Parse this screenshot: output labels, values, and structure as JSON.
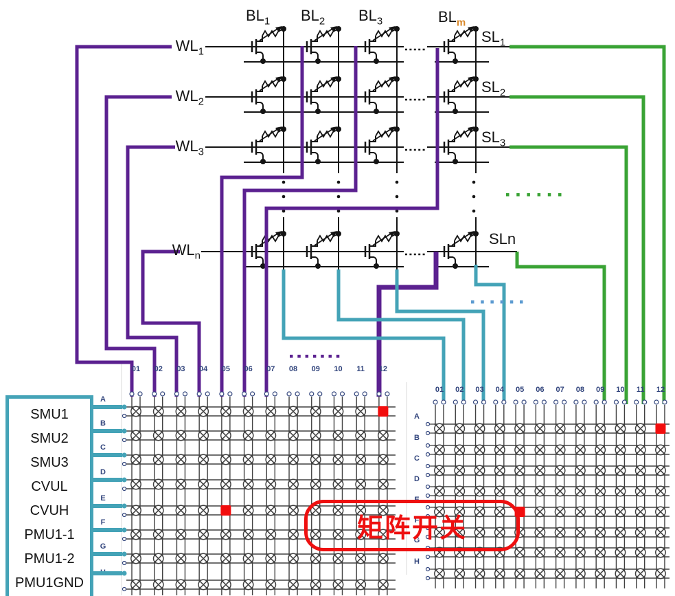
{
  "top_labels": {
    "bl": [
      {
        "pre": "BL",
        "sub": "1"
      },
      {
        "pre": "BL",
        "sub": "2"
      },
      {
        "pre": "BL",
        "sub": "3"
      },
      {
        "pre": "BL",
        "sub": "m"
      }
    ],
    "wl": [
      {
        "pre": "WL",
        "sub": "1"
      },
      {
        "pre": "WL",
        "sub": "2"
      },
      {
        "pre": "WL",
        "sub": "3"
      },
      {
        "pre": "WL",
        "sub": "n"
      }
    ],
    "sl": [
      {
        "pre": "SL",
        "sub": "1"
      },
      {
        "pre": "SL",
        "sub": "2"
      },
      {
        "pre": "SL",
        "sub": "3"
      },
      {
        "pre": "SL",
        "post": "n"
      }
    ]
  },
  "pmu_box": {
    "items": [
      "SMU1",
      "SMU2",
      "SMU3",
      "CVUL",
      "CVUH",
      "PMU1-1",
      "PMU1-2",
      "PMU1GND"
    ]
  },
  "annotation": {
    "text": "矩阵开关"
  },
  "matrices": {
    "left": {
      "columns": [
        "01",
        "02",
        "03",
        "04",
        "05",
        "06",
        "07",
        "08",
        "09",
        "10",
        "11",
        "12"
      ],
      "rows": [
        "A",
        "B",
        "C",
        "D",
        "E",
        "F",
        "G",
        "H"
      ],
      "marks": [
        [
          0,
          11
        ],
        [
          4,
          4
        ]
      ]
    },
    "right": {
      "columns": [
        "01",
        "02",
        "03",
        "04",
        "05",
        "06",
        "07",
        "08",
        "09",
        "10",
        "11",
        "12"
      ],
      "rows": [
        "A",
        "B",
        "C",
        "D",
        "E",
        "F",
        "G",
        "H"
      ],
      "marks": [
        [
          0,
          11
        ],
        [
          4,
          4
        ]
      ]
    }
  },
  "colors": {
    "purple": "#5b2190",
    "teal": "#44a3b7",
    "green": "#3aa335",
    "light_blue": "#5c9bd1",
    "red": "#f20d0d",
    "navy": "#31447c",
    "orange": "#d9892b",
    "black": "#141414",
    "grid": "#404040"
  }
}
